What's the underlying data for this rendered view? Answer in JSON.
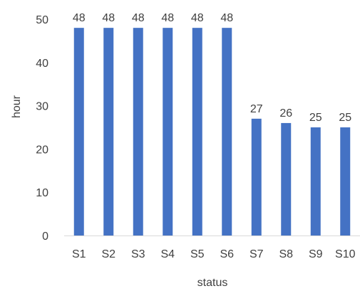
{
  "chart_data": {
    "type": "bar",
    "title": "",
    "xlabel": "status",
    "ylabel": "hour",
    "categories": [
      "S1",
      "S2",
      "S3",
      "S4",
      "S5",
      "S6",
      "S7",
      "S8",
      "S9",
      "S10"
    ],
    "values": [
      48,
      48,
      48,
      48,
      48,
      48,
      27,
      26,
      25,
      25
    ],
    "ylim": [
      0,
      50
    ],
    "yticks": [
      "0",
      "10",
      "20",
      "30",
      "40",
      "50"
    ],
    "grid": false,
    "legend": "none",
    "data_labels": true,
    "bar_color": "#4472C4",
    "axis_color": "#D9D9D9",
    "text_color": "#404040"
  }
}
